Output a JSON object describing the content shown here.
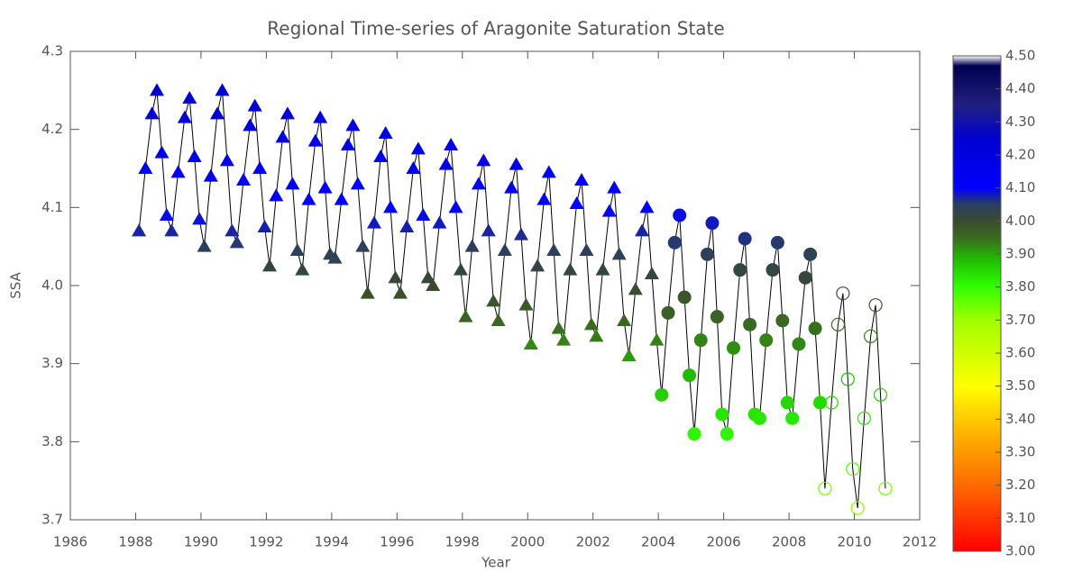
{
  "chart_data": {
    "type": "scatter",
    "title": "Regional Time-series of Aragonite Saturation State",
    "xlabel": "Year",
    "ylabel": "SSA",
    "xlim": [
      1986,
      2012
    ],
    "xticks": [
      1986,
      1988,
      1990,
      1992,
      1994,
      1996,
      1998,
      2000,
      2002,
      2004,
      2006,
      2008,
      2010,
      2012
    ],
    "ylim": [
      3.7,
      4.3
    ],
    "yticks": [
      3.7,
      3.8,
      3.9,
      {
        "value": 4.0,
        "label": "4.0"
      },
      4.1,
      4.2,
      4.3
    ],
    "line_color": "#000000",
    "series": [
      {
        "marker": "triangle",
        "x": [
          1988.1,
          1988.3,
          1988.5,
          1988.65,
          1988.8,
          1988.95,
          1989.1,
          1989.3,
          1989.5,
          1989.65,
          1989.8,
          1989.95,
          1990.1,
          1990.3,
          1990.5,
          1990.65,
          1990.8,
          1990.95,
          1991.1,
          1991.3,
          1991.5,
          1991.65,
          1991.8,
          1991.95,
          1992.1,
          1992.3,
          1992.5,
          1992.65,
          1992.8,
          1992.95,
          1993.1,
          1993.3,
          1993.5,
          1993.65,
          1993.8,
          1993.95,
          1994.1,
          1994.3,
          1994.5,
          1994.65,
          1994.8,
          1994.95,
          1995.1,
          1995.3,
          1995.5,
          1995.65,
          1995.8,
          1995.95,
          1996.1,
          1996.3,
          1996.5,
          1996.65,
          1996.8,
          1996.95,
          1997.1,
          1997.3,
          1997.5,
          1997.65,
          1997.8,
          1997.95,
          1998.1,
          1998.3,
          1998.5,
          1998.65,
          1998.8,
          1998.95,
          1999.1,
          1999.3,
          1999.5,
          1999.65,
          1999.8,
          1999.95,
          2000.1,
          2000.3,
          2000.5,
          2000.65,
          2000.8,
          2000.95,
          2001.1,
          2001.3,
          2001.5,
          2001.65,
          2001.8,
          2001.95,
          2002.1,
          2002.3,
          2002.5,
          2002.65,
          2002.8,
          2002.95,
          2003.1,
          2003.3,
          2003.5,
          2003.65,
          2003.8,
          2003.95
        ],
        "values": [
          4.07,
          4.15,
          4.22,
          4.25,
          4.17,
          4.09,
          4.07,
          4.145,
          4.215,
          4.24,
          4.165,
          4.085,
          4.05,
          4.14,
          4.22,
          4.25,
          4.16,
          4.07,
          4.055,
          4.135,
          4.205,
          4.23,
          4.15,
          4.075,
          4.025,
          4.115,
          4.19,
          4.22,
          4.13,
          4.045,
          4.02,
          4.11,
          4.185,
          4.215,
          4.125,
          4.04,
          4.035,
          4.11,
          4.18,
          4.205,
          4.13,
          4.05,
          3.99,
          4.08,
          4.165,
          4.195,
          4.1,
          4.01,
          3.99,
          4.075,
          4.15,
          4.175,
          4.09,
          4.01,
          4.0,
          4.08,
          4.155,
          4.18,
          4.1,
          4.02,
          3.96,
          4.05,
          4.13,
          4.16,
          4.07,
          3.98,
          3.955,
          4.045,
          4.125,
          4.155,
          4.065,
          3.975,
          3.925,
          4.025,
          4.11,
          4.145,
          4.045,
          3.945,
          3.93,
          4.02,
          4.105,
          4.135,
          4.045,
          3.95,
          3.935,
          4.02,
          4.095,
          4.125,
          4.04,
          3.955,
          3.91,
          3.995,
          4.07,
          4.1,
          4.015,
          3.93
        ]
      },
      {
        "marker": "circle",
        "x": [
          2004.1,
          2004.3,
          2004.5,
          2004.65,
          2004.8,
          2004.95,
          2005.1,
          2005.3,
          2005.5,
          2005.65,
          2005.8,
          2005.95,
          2006.1,
          2006.3,
          2006.5,
          2006.65,
          2006.8,
          2006.95,
          2007.1,
          2007.3,
          2007.5,
          2007.65,
          2007.8,
          2007.95,
          2008.1,
          2008.3,
          2008.5,
          2008.65,
          2008.8,
          2008.95
        ],
        "values": [
          3.86,
          3.965,
          4.055,
          4.09,
          3.985,
          3.885,
          3.81,
          3.93,
          4.04,
          4.08,
          3.96,
          3.835,
          3.81,
          3.92,
          4.02,
          4.06,
          3.95,
          3.835,
          3.83,
          3.93,
          4.02,
          4.055,
          3.955,
          3.85,
          3.83,
          3.925,
          4.01,
          4.04,
          3.945,
          3.85
        ]
      },
      {
        "marker": "open-circle",
        "x": [
          2009.1,
          2009.3,
          2009.5,
          2009.65,
          2009.8,
          2009.95,
          2010.1,
          2010.3,
          2010.5,
          2010.65,
          2010.8,
          2010.95
        ],
        "values": [
          3.74,
          3.85,
          3.95,
          3.99,
          3.88,
          3.765,
          3.715,
          3.83,
          3.935,
          3.975,
          3.86,
          3.74
        ]
      }
    ],
    "colorbar": {
      "lim": [
        3.0,
        4.5
      ],
      "ticks": [
        {
          "value": 3.0,
          "label": "3.00"
        },
        {
          "value": 3.1,
          "label": "3.10"
        },
        {
          "value": 3.2,
          "label": "3.20"
        },
        {
          "value": 3.3,
          "label": "3.30"
        },
        {
          "value": 3.4,
          "label": "3.40"
        },
        {
          "value": 3.5,
          "label": "3.50"
        },
        {
          "value": 3.6,
          "label": "3.60"
        },
        {
          "value": 3.7,
          "label": "3.70"
        },
        {
          "value": 3.8,
          "label": "3.80"
        },
        {
          "value": 3.9,
          "label": "3.90"
        },
        {
          "value": 4.0,
          "label": "4.00"
        },
        {
          "value": 4.1,
          "label": "4.10"
        },
        {
          "value": 4.2,
          "label": "4.20"
        },
        {
          "value": 4.3,
          "label": "4.30"
        },
        {
          "value": 4.4,
          "label": "4.40"
        },
        {
          "value": 4.5,
          "label": "4.50"
        }
      ],
      "colormap": [
        [
          3.0,
          "#ff0000"
        ],
        [
          3.2,
          "#ff6a00"
        ],
        [
          3.35,
          "#ffb000"
        ],
        [
          3.5,
          "#ffff00"
        ],
        [
          3.7,
          "#a0ff00"
        ],
        [
          3.8,
          "#30ff00"
        ],
        [
          3.88,
          "#20c000"
        ],
        [
          3.95,
          "#3a6a20"
        ],
        [
          4.0,
          "#3a4a30"
        ],
        [
          4.05,
          "#2b3f60"
        ],
        [
          4.1,
          "#0000ff"
        ],
        [
          4.25,
          "#0000d0"
        ],
        [
          4.35,
          "#202080"
        ],
        [
          4.47,
          "#000050"
        ],
        [
          4.5,
          "#ffffff"
        ]
      ]
    }
  }
}
